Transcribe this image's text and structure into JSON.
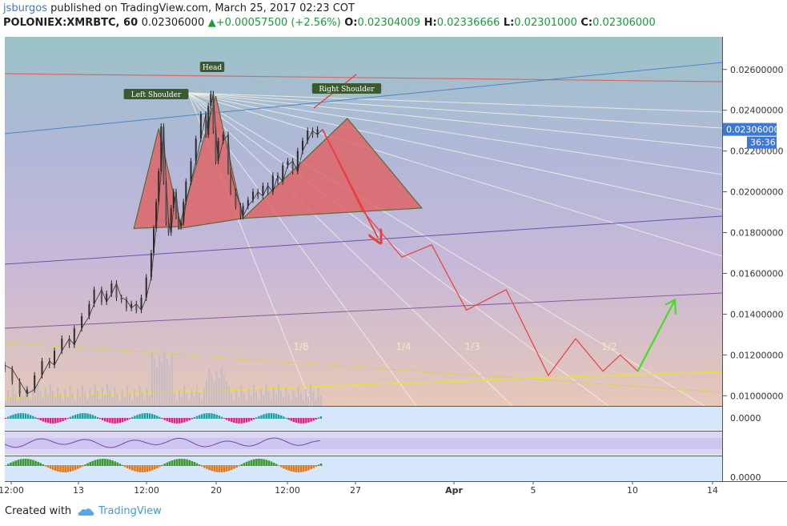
{
  "header": {
    "author": "jsburgos",
    "published_text": "published on TradingView.com, March 25, 2017 02:23 COT",
    "symbol": "POLONIEX:XMRBTC, 60",
    "last": "0.02306000",
    "change": "+0.00057500 (+2.56%)",
    "o_label": "O:",
    "o": "0.02304009",
    "h_label": "H:",
    "h": "0.02336666",
    "l_label": "L:",
    "l": "0.02301000",
    "c_label": "C:",
    "c": "0.02306000"
  },
  "footer": {
    "created_with": "Created with",
    "brand": "TradingView"
  },
  "colors": {
    "up": "#1a9a3a",
    "pattern_fill": "#e06060",
    "projection": "#e84040",
    "breakout": "#44dd22",
    "price_tag": "#3c78d8",
    "axis_bg": "#ffffff"
  },
  "chart_data": {
    "type": "line",
    "title": "POLONIEX:XMRBTC, 60",
    "y_axis": {
      "ticks": [
        "0.02600000",
        "0.02400000",
        "0.02200000",
        "0.02000000",
        "0.01800000",
        "0.01600000",
        "0.01400000",
        "0.01200000",
        "0.01000000"
      ],
      "tick_values": [
        0.026,
        0.024,
        0.022,
        0.02,
        0.018,
        0.016,
        0.014,
        0.012,
        0.01
      ],
      "range": [
        0.0095,
        0.0276
      ],
      "last_price_label": "0.02306000",
      "countdown_label": "36:36"
    },
    "x_axis": {
      "ticks": [
        "12:00",
        "13",
        "12:00",
        "20",
        "12:00",
        "27",
        "Apr",
        "5",
        "10",
        "14"
      ]
    },
    "pattern_labels": [
      "Left Shoulder",
      "Head",
      "Right Shoulder"
    ],
    "fan_labels": [
      "1/8",
      "1/4",
      "1/3",
      "1/2"
    ],
    "series": [
      {
        "name": "Price",
        "points": [
          [
            0,
            0.0115
          ],
          [
            3,
            0.0113
          ],
          [
            6,
            0.0107
          ],
          [
            9,
            0.0101
          ],
          [
            12,
            0.0103
          ],
          [
            15,
            0.011
          ],
          [
            18,
            0.0117
          ],
          [
            20,
            0.0115
          ],
          [
            23,
            0.0122
          ],
          [
            26,
            0.0128
          ],
          [
            28,
            0.0125
          ],
          [
            31,
            0.0133
          ],
          [
            34,
            0.0139
          ],
          [
            36,
            0.0145
          ],
          [
            39,
            0.0152
          ],
          [
            41,
            0.0146
          ],
          [
            43,
            0.015
          ],
          [
            45,
            0.0155
          ],
          [
            47,
            0.0148
          ],
          [
            49,
            0.0147
          ],
          [
            51,
            0.0143
          ],
          [
            53,
            0.0145
          ],
          [
            55,
            0.0142
          ],
          [
            57,
            0.0148
          ],
          [
            59,
            0.0158
          ],
          [
            60,
            0.017
          ],
          [
            61,
            0.0182
          ],
          [
            62,
            0.0195
          ],
          [
            63,
            0.021
          ],
          [
            64,
            0.0232
          ],
          [
            65,
            0.0205
          ],
          [
            66,
            0.0185
          ],
          [
            67,
            0.018
          ],
          [
            68,
            0.0192
          ],
          [
            69,
            0.02
          ],
          [
            70,
            0.0188
          ],
          [
            71,
            0.0183
          ],
          [
            72,
            0.0185
          ],
          [
            73,
            0.0195
          ],
          [
            75,
            0.0205
          ],
          [
            77,
            0.0215
          ],
          [
            79,
            0.0226
          ],
          [
            81,
            0.0238
          ],
          [
            82,
            0.0228
          ],
          [
            83,
            0.0242
          ],
          [
            84,
            0.0248
          ],
          [
            85,
            0.023
          ],
          [
            86,
            0.0215
          ],
          [
            88,
            0.0225
          ],
          [
            90,
            0.0228
          ],
          [
            91,
            0.021
          ],
          [
            93,
            0.02
          ],
          [
            95,
            0.0193
          ],
          [
            96,
            0.0188
          ],
          [
            98,
            0.0193
          ],
          [
            100,
            0.0196
          ],
          [
            102,
            0.02
          ],
          [
            104,
            0.0198
          ],
          [
            106,
            0.0203
          ],
          [
            108,
            0.02
          ],
          [
            110,
            0.0208
          ],
          [
            112,
            0.0205
          ],
          [
            114,
            0.0213
          ],
          [
            116,
            0.0215
          ],
          [
            118,
            0.021
          ],
          [
            120,
            0.022
          ],
          [
            122,
            0.0225
          ],
          [
            124,
            0.023
          ],
          [
            126,
            0.0228
          ],
          [
            128,
            0.02306
          ]
        ]
      },
      {
        "name": "Projection",
        "points": [
          [
            128,
            0.02306
          ],
          [
            144,
            0.0191
          ],
          [
            160,
            0.0168
          ],
          [
            172,
            0.0174
          ],
          [
            186,
            0.0142
          ],
          [
            202,
            0.0152
          ],
          [
            219,
            0.011
          ],
          [
            230,
            0.0128
          ],
          [
            241,
            0.0112
          ],
          [
            248,
            0.012
          ],
          [
            255,
            0.0112
          ]
        ]
      },
      {
        "name": "Breakout",
        "points": [
          [
            255,
            0.0112
          ],
          [
            270,
            0.0147
          ]
        ]
      }
    ],
    "head_and_shoulders": [
      {
        "label": "Left Shoulder",
        "points": [
          [
            52,
            0.0182
          ],
          [
            62,
            0.0231
          ],
          [
            71,
            0.0183
          ]
        ]
      },
      {
        "label": "Head",
        "points": [
          [
            70,
            0.0182
          ],
          [
            85,
            0.0247
          ],
          [
            96,
            0.0187
          ]
        ]
      },
      {
        "label": "Right Shoulder",
        "points": [
          [
            96,
            0.0187
          ],
          [
            138,
            0.0236
          ],
          [
            168,
            0.0192
          ]
        ]
      }
    ],
    "indicators": [
      {
        "name": "Oscillator",
        "value_label": "0.0000"
      },
      {
        "name": "Histogram",
        "value_label": "0.0000"
      }
    ]
  }
}
